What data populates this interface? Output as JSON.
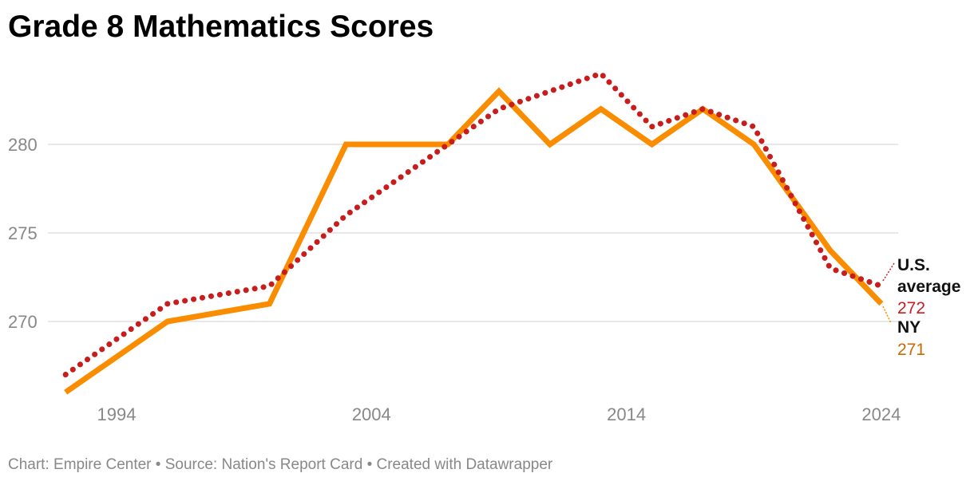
{
  "chart_data": {
    "type": "line",
    "title": "Grade 8 Mathematics Scores",
    "xlabel": "",
    "ylabel": "",
    "xlim": [
      1992,
      2024
    ],
    "ylim": [
      265.5,
      285
    ],
    "x_ticks": [
      "1994",
      "2004",
      "2014",
      "2024"
    ],
    "y_ticks": [
      "270",
      "275",
      "280"
    ],
    "grid": "horizontal",
    "x": [
      1992,
      1996,
      2000,
      2003,
      2005,
      2007,
      2009,
      2011,
      2013,
      2015,
      2017,
      2019,
      2022,
      2024
    ],
    "series": [
      {
        "name": "U.S. average",
        "label_lines": [
          "U.S.",
          "average"
        ],
        "end_value": "272",
        "color": "#c71e1d",
        "style": "dotted",
        "values": [
          267,
          271,
          272,
          276,
          278,
          280,
          282,
          283,
          284,
          281,
          282,
          281,
          273,
          272
        ]
      },
      {
        "name": "NY",
        "label_lines": [
          "NY"
        ],
        "end_value": "271",
        "color": "#fa8c00",
        "value_color": "#c86a00",
        "style": "solid",
        "values": [
          266,
          270,
          271,
          280,
          280,
          280,
          283,
          280,
          282,
          280,
          282,
          280,
          274,
          271
        ]
      }
    ]
  },
  "footer": "Chart: Empire Center • Source: Nation's Report Card • Created with Datawrapper"
}
